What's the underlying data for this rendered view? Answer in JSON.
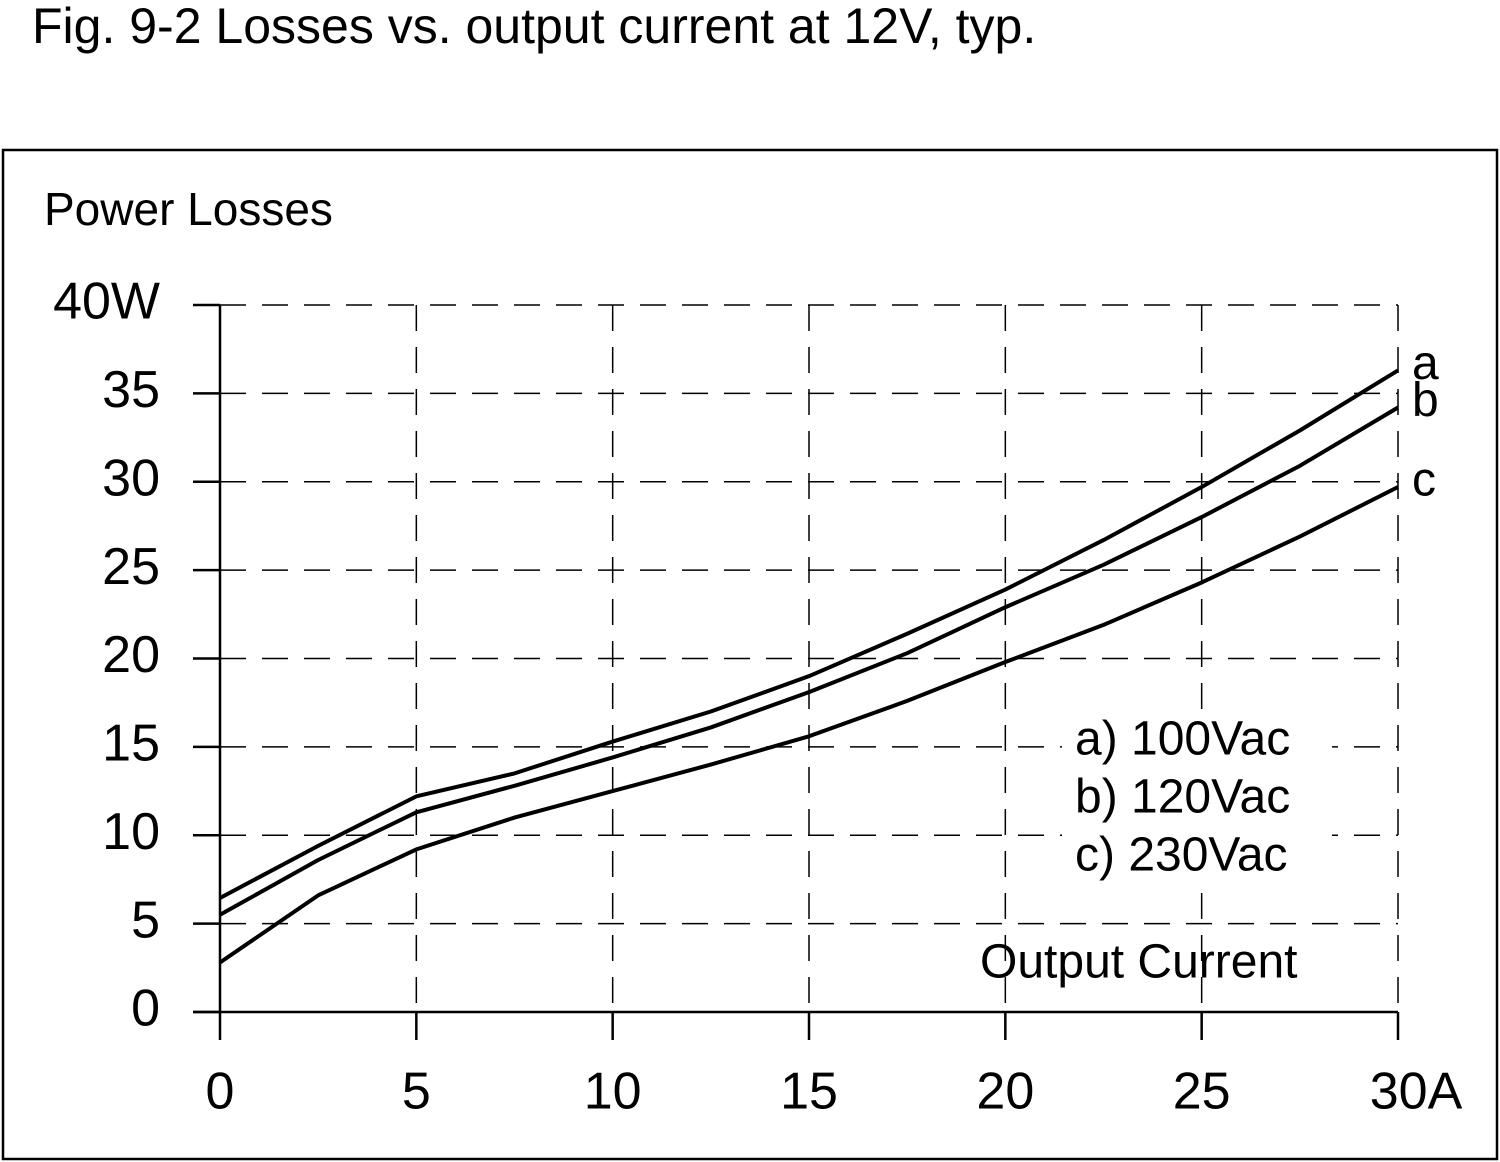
{
  "chart_data": {
    "type": "line",
    "title": "Fig. 9-2     Losses vs. output current at 12V, typ.",
    "y_label": "Power Losses",
    "x_label": "Output Current",
    "x": [
      0,
      2.5,
      5,
      7.5,
      10,
      12.5,
      15,
      17.5,
      20,
      22.5,
      25,
      27.5,
      30
    ],
    "series": [
      {
        "name": "a) 100Vac",
        "end_label": "a",
        "color": "#000000",
        "values": [
          6.45,
          9.4,
          12.2,
          13.5,
          15.3,
          17.0,
          19.0,
          21.4,
          23.9,
          26.7,
          29.7,
          32.9,
          36.3
        ]
      },
      {
        "name": "b) 120Vac",
        "end_label": "b",
        "color": "#000000",
        "values": [
          5.5,
          8.6,
          11.3,
          12.8,
          14.4,
          16.1,
          18.1,
          20.3,
          22.9,
          25.3,
          28.0,
          30.9,
          34.2
        ]
      },
      {
        "name": "c) 230Vac",
        "end_label": "c",
        "color": "#000000",
        "values": [
          2.8,
          6.6,
          9.2,
          11.0,
          12.5,
          14.0,
          15.6,
          17.6,
          19.8,
          21.9,
          24.3,
          26.9,
          29.7
        ]
      }
    ],
    "xlim": [
      0,
      30
    ],
    "xticks": [
      0,
      5,
      10,
      15,
      20,
      25,
      {
        "value": 30,
        "label": "30A"
      }
    ],
    "ylim": [
      0,
      40
    ],
    "yticks": [
      0,
      5,
      10,
      15,
      20,
      25,
      30,
      35,
      {
        "value": 40,
        "label": "40W"
      }
    ],
    "grid": true
  }
}
